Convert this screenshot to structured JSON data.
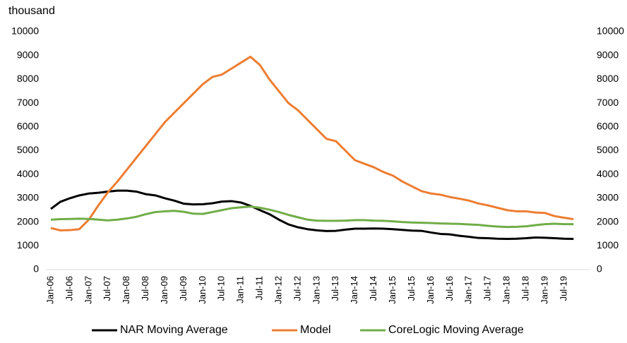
{
  "chart_data": {
    "type": "line",
    "y_unit_label": "thousand",
    "categories": [
      "Jan-06",
      null,
      "Jul-06",
      null,
      "Jan-07",
      null,
      "Jul-07",
      null,
      "Jan-08",
      null,
      "Jul-08",
      null,
      "Jan-09",
      null,
      "Jul-09",
      null,
      "Jan-10",
      null,
      "Jul-10",
      null,
      "Jan-11",
      null,
      "Jul-11",
      null,
      "Jan-12",
      null,
      "Jul-12",
      null,
      "Jan-13",
      null,
      "Jul-13",
      null,
      "Jan-14",
      null,
      "Jul-14",
      null,
      "Jan-15",
      null,
      "Jul-15",
      null,
      "Jan-16",
      null,
      "Jul-16",
      null,
      "Jan-17",
      null,
      "Jul-17",
      null,
      "Jan-18",
      null,
      "Jul-18",
      null,
      "Jan-19",
      null,
      "Jul-19",
      null
    ],
    "series": [
      {
        "name": "NAR Moving Average",
        "color": "#000000",
        "values": [
          2550,
          2850,
          3000,
          3120,
          3200,
          3230,
          3280,
          3320,
          3320,
          3280,
          3170,
          3120,
          3000,
          2900,
          2770,
          2740,
          2750,
          2790,
          2860,
          2880,
          2820,
          2680,
          2500,
          2330,
          2100,
          1900,
          1780,
          1700,
          1650,
          1620,
          1630,
          1680,
          1720,
          1720,
          1730,
          1720,
          1700,
          1670,
          1640,
          1630,
          1560,
          1500,
          1480,
          1420,
          1380,
          1330,
          1320,
          1300,
          1290,
          1300,
          1320,
          1350,
          1340,
          1320,
          1300,
          1290
        ]
      },
      {
        "name": "Model",
        "color": "#ed7d31",
        "values": [
          1750,
          1650,
          1660,
          1700,
          2100,
          2700,
          3250,
          3700,
          4200,
          4700,
          5200,
          5700,
          6200,
          6600,
          7000,
          7400,
          7800,
          8100,
          8200,
          8450,
          8700,
          8950,
          8600,
          8000,
          7500,
          7000,
          6700,
          6300,
          5900,
          5500,
          5400,
          5000,
          4600,
          4450,
          4300,
          4100,
          3950,
          3700,
          3500,
          3300,
          3200,
          3150,
          3050,
          2980,
          2900,
          2780,
          2700,
          2600,
          2500,
          2450,
          2450,
          2400,
          2380,
          2250,
          2180,
          2120
        ]
      },
      {
        "name": "CoreLogic Moving Average",
        "color": "#70ad47",
        "values": [
          2100,
          2120,
          2130,
          2140,
          2130,
          2100,
          2070,
          2100,
          2150,
          2220,
          2330,
          2420,
          2450,
          2470,
          2430,
          2350,
          2340,
          2420,
          2500,
          2580,
          2620,
          2650,
          2600,
          2520,
          2420,
          2300,
          2200,
          2100,
          2060,
          2050,
          2050,
          2060,
          2080,
          2080,
          2060,
          2050,
          2030,
          2000,
          1980,
          1970,
          1960,
          1940,
          1930,
          1920,
          1900,
          1880,
          1840,
          1810,
          1790,
          1800,
          1820,
          1870,
          1910,
          1930,
          1910,
          1910
        ]
      }
    ],
    "ylim": [
      0,
      10000
    ],
    "yticks": [
      0,
      1000,
      2000,
      3000,
      4000,
      5000,
      6000,
      7000,
      8000,
      9000,
      10000
    ],
    "y2lim": [
      0,
      10000
    ],
    "y2ticks": [
      0,
      1000,
      2000,
      3000,
      4000,
      5000,
      6000,
      7000,
      8000,
      9000,
      10000
    ],
    "grid": false,
    "legend": "bottom"
  }
}
